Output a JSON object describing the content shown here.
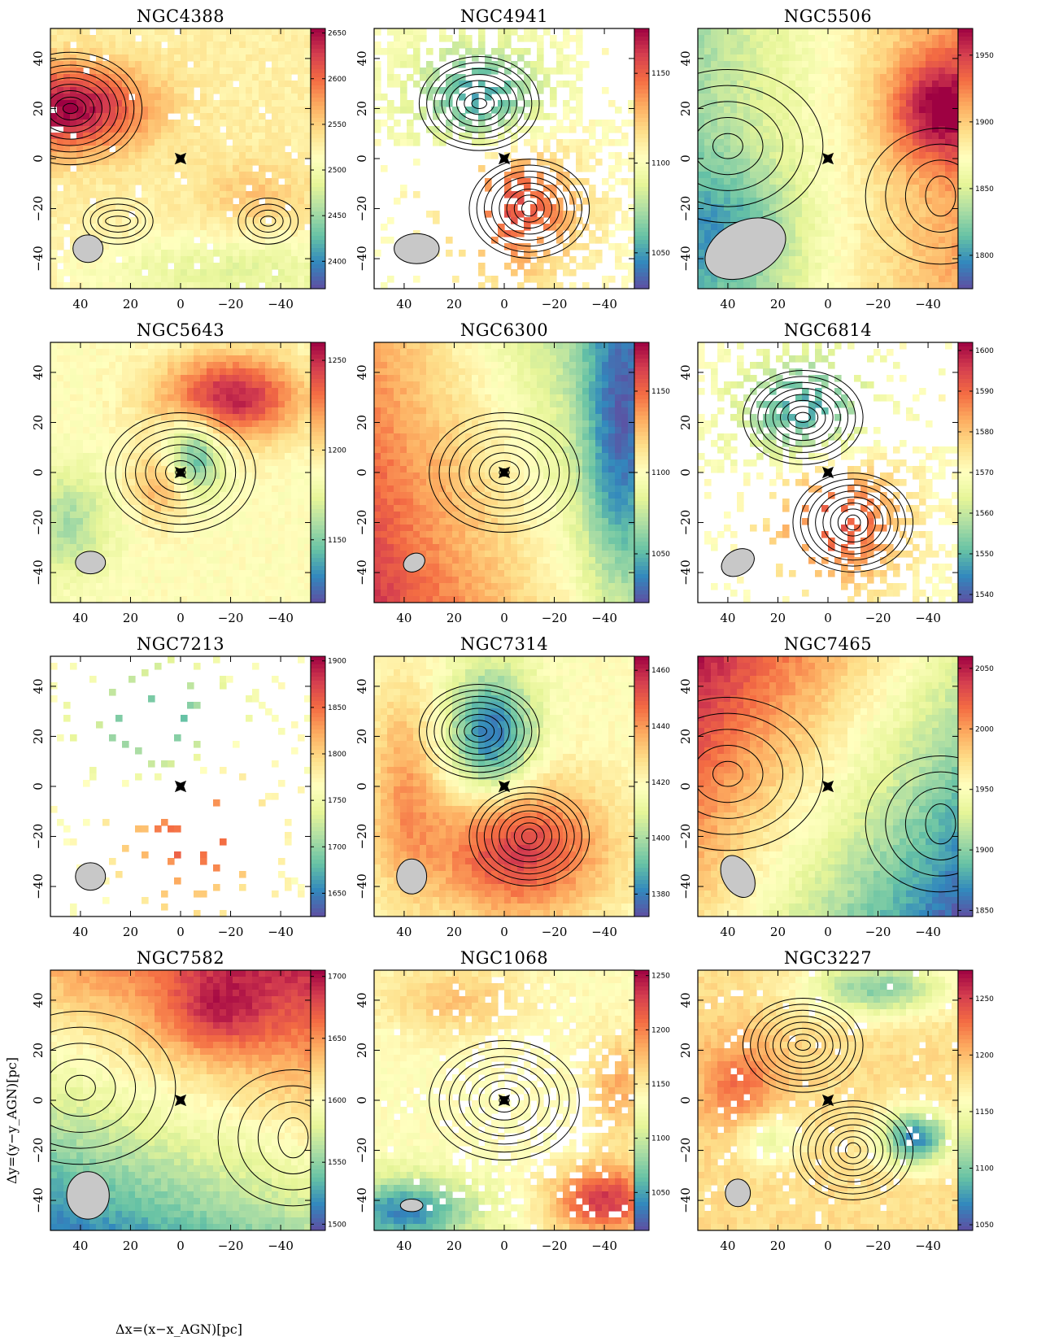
{
  "figure": {
    "xlabel": "Δx=(x−x_AGN)[pc]",
    "ylabel": "Δy=(y−y_AGN)[pc]",
    "x_ticks": [
      "40",
      "20",
      "0",
      "−20",
      "−40"
    ],
    "y_ticks": [
      "40",
      "20",
      "0",
      "−20",
      "−40"
    ],
    "colormap": "spectral",
    "colormap_stops": [
      "#5e4fa2",
      "#3288bd",
      "#66c2a5",
      "#abdda4",
      "#e6f598",
      "#ffffbf",
      "#fee08b",
      "#fdae61",
      "#f46d43",
      "#d53e4f",
      "#9e0142"
    ]
  },
  "chart_data": [
    {
      "type": "heatmap",
      "title": "NGC4388",
      "xlim": [
        52,
        -52
      ],
      "ylim": [
        -52,
        52
      ],
      "colorbar_ticks": [
        "2650",
        "2600",
        "2550",
        "2500",
        "2450",
        "2400"
      ],
      "colorbar_values": [
        2650,
        2600,
        2550,
        2500,
        2450,
        2400
      ],
      "cmin": 2370,
      "cmax": 2655,
      "beam": {
        "x": 37,
        "y": -36,
        "rx": 6,
        "ry": 5.5,
        "angle": 0
      },
      "pattern": "plateau",
      "contours": "peak-left",
      "blank": 0.04
    },
    {
      "type": "heatmap",
      "title": "NGC4941",
      "xlim": [
        52,
        -52
      ],
      "ylim": [
        -52,
        52
      ],
      "colorbar_ticks": [
        "1150",
        "1100",
        "1050"
      ],
      "colorbar_values": [
        1150,
        1100,
        1050
      ],
      "cmin": 1030,
      "cmax": 1175,
      "beam": {
        "x": 35,
        "y": -36,
        "rx": 9,
        "ry": 6,
        "angle": 0
      },
      "pattern": "dipole-ud",
      "contours": "two-lobes",
      "blank": 0.45
    },
    {
      "type": "heatmap",
      "title": "NGC5506",
      "xlim": [
        52,
        -52
      ],
      "ylim": [
        -52,
        52
      ],
      "colorbar_ticks": [
        "1950",
        "1900",
        "1850",
        "1800"
      ],
      "colorbar_values": [
        1950,
        1900,
        1850,
        1800
      ],
      "cmin": 1775,
      "cmax": 1970,
      "beam": {
        "x": 33,
        "y": -36,
        "rx": 17,
        "ry": 11,
        "angle": -25
      },
      "pattern": "gradient-lr",
      "contours": "wide",
      "blank": 0.0
    },
    {
      "type": "heatmap",
      "title": "NGC5643",
      "xlim": [
        52,
        -52
      ],
      "ylim": [
        -52,
        52
      ],
      "colorbar_ticks": [
        "1250",
        "1200",
        "1150"
      ],
      "colorbar_values": [
        1250,
        1200,
        1150
      ],
      "cmin": 1115,
      "cmax": 1260,
      "beam": {
        "x": 36,
        "y": -36,
        "rx": 6,
        "ry": 4.5,
        "angle": 0
      },
      "pattern": "s-shape",
      "contours": "nucleus",
      "blank": 0.0
    },
    {
      "type": "heatmap",
      "title": "NGC6300",
      "xlim": [
        52,
        -52
      ],
      "ylim": [
        -52,
        52
      ],
      "colorbar_ticks": [
        "1150",
        "1100",
        "1050"
      ],
      "colorbar_values": [
        1150,
        1100,
        1050
      ],
      "cmin": 1020,
      "cmax": 1180,
      "beam": {
        "x": 36,
        "y": -36,
        "rx": 4.5,
        "ry": 3.5,
        "angle": -30
      },
      "pattern": "gradient-rl",
      "contours": "nucleus",
      "blank": 0.0
    },
    {
      "type": "heatmap",
      "title": "NGC6814",
      "xlim": [
        52,
        -52
      ],
      "ylim": [
        -52,
        52
      ],
      "colorbar_ticks": [
        "1600",
        "1590",
        "1580",
        "1570",
        "1560",
        "1550",
        "1540"
      ],
      "colorbar_values": [
        1600,
        1590,
        1580,
        1570,
        1560,
        1550,
        1540
      ],
      "cmin": 1538,
      "cmax": 1602,
      "beam": {
        "x": 36,
        "y": -36,
        "rx": 7,
        "ry": 5,
        "angle": -30
      },
      "pattern": "dipole-ud",
      "contours": "two-lobes",
      "blank": 0.5
    },
    {
      "type": "heatmap",
      "title": "NGC7213",
      "xlim": [
        52,
        -52
      ],
      "ylim": [
        -52,
        52
      ],
      "colorbar_ticks": [
        "1900",
        "1850",
        "1800",
        "1750",
        "1700",
        "1650"
      ],
      "colorbar_values": [
        1900,
        1850,
        1800,
        1750,
        1700,
        1650
      ],
      "cmin": 1625,
      "cmax": 1905,
      "beam": {
        "x": 36,
        "y": -36,
        "rx": 6,
        "ry": 5.5,
        "angle": 0
      },
      "pattern": "dipole-ud",
      "contours": "none",
      "blank": 0.92
    },
    {
      "type": "heatmap",
      "title": "NGC7314",
      "xlim": [
        52,
        -52
      ],
      "ylim": [
        -52,
        52
      ],
      "colorbar_ticks": [
        "1460",
        "1440",
        "1420",
        "1400",
        "1380"
      ],
      "colorbar_values": [
        1460,
        1440,
        1420,
        1400,
        1380
      ],
      "cmin": 1372,
      "cmax": 1465,
      "beam": {
        "x": 37,
        "y": -36,
        "rx": 6,
        "ry": 7,
        "angle": 0
      },
      "pattern": "dipole-du",
      "contours": "two-lobes",
      "blank": 0.0
    },
    {
      "type": "heatmap",
      "title": "NGC7465",
      "xlim": [
        52,
        -52
      ],
      "ylim": [
        -52,
        52
      ],
      "colorbar_ticks": [
        "2050",
        "2000",
        "1950",
        "1900",
        "1850"
      ],
      "colorbar_values": [
        2050,
        2000,
        1950,
        1900,
        1850
      ],
      "cmin": 1845,
      "cmax": 2060,
      "beam": {
        "x": 36,
        "y": -36,
        "rx": 6,
        "ry": 9,
        "angle": -30
      },
      "pattern": "diag",
      "contours": "wide",
      "blank": 0.0
    },
    {
      "type": "heatmap",
      "title": "NGC7582",
      "xlim": [
        52,
        -52
      ],
      "ylim": [
        -52,
        52
      ],
      "colorbar_ticks": [
        "1700",
        "1650",
        "1600",
        "1550",
        "1500"
      ],
      "colorbar_values": [
        1700,
        1650,
        1600,
        1550,
        1500
      ],
      "cmin": 1495,
      "cmax": 1705,
      "beam": {
        "x": 37,
        "y": -38,
        "rx": 8.5,
        "ry": 9.5,
        "angle": 0
      },
      "pattern": "diag2",
      "contours": "wide",
      "blank": 0.0
    },
    {
      "type": "heatmap",
      "title": "NGC1068",
      "xlim": [
        52,
        -52
      ],
      "ylim": [
        -52,
        52
      ],
      "colorbar_ticks": [
        "1250",
        "1200",
        "1150",
        "1100",
        "1050"
      ],
      "colorbar_values": [
        1250,
        1200,
        1150,
        1100,
        1050
      ],
      "cmin": 1015,
      "cmax": 1255,
      "beam": {
        "x": 37,
        "y": -42,
        "rx": 4.5,
        "ry": 2.5,
        "angle": 0
      },
      "pattern": "ring",
      "contours": "nucleus",
      "blank": 0.3
    },
    {
      "type": "heatmap",
      "title": "NGC3227",
      "xlim": [
        52,
        -52
      ],
      "ylim": [
        -52,
        52
      ],
      "colorbar_ticks": [
        "1250",
        "1200",
        "1150",
        "1100",
        "1050"
      ],
      "colorbar_values": [
        1250,
        1200,
        1150,
        1100,
        1050
      ],
      "cmin": 1045,
      "cmax": 1275,
      "beam": {
        "x": 36,
        "y": -37,
        "rx": 5,
        "ry": 5.5,
        "angle": 0
      },
      "pattern": "patchy",
      "contours": "two-lobes",
      "blank": 0.05
    }
  ]
}
